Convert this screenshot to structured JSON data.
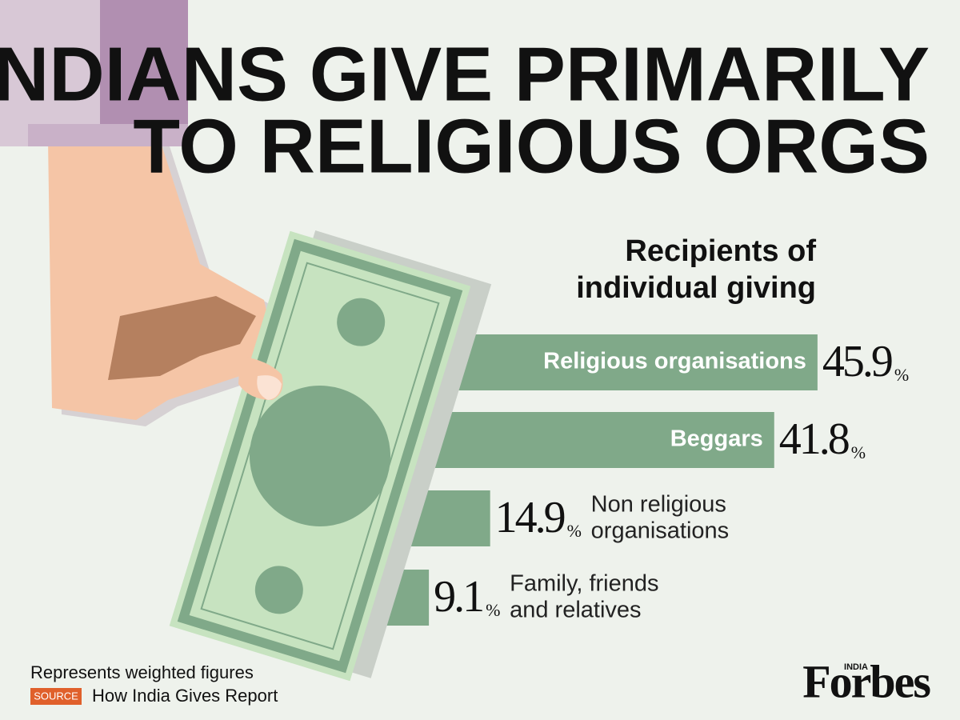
{
  "chart_data": {
    "type": "hbar",
    "title": [
      "INDIANS GIVE PRIMARILY",
      "TO RELIGIOUS ORGS"
    ],
    "subtitle": [
      "Recipients of",
      "individual giving"
    ],
    "categories": [
      "Religious organisations",
      "Beggars",
      "Non religious organisations",
      "Family, friends and relatives"
    ],
    "values": [
      45.9,
      41.8,
      14.9,
      9.1
    ],
    "unit": "%",
    "color": "#80a989"
  },
  "footer": {
    "note": "Represents weighted figures",
    "source_tag": "SOURCE",
    "source": "How India Gives Report"
  },
  "logo": {
    "name": "Forbes",
    "edition": "INDIA"
  }
}
